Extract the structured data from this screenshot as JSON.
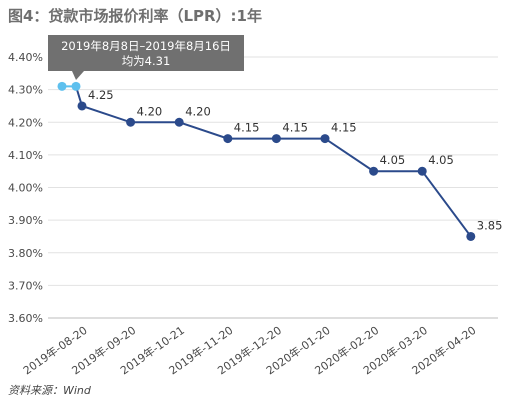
{
  "title": "图4：贷款市场报价利率（LPR）:1年",
  "source": "资料来源：Wind",
  "colors": {
    "line": "#2b4a8b",
    "point": "#2b4a8b",
    "highlight": "#5ec0ee",
    "tooltip_bg": "#707070",
    "grid": "#e2e2e2"
  },
  "chart_data": {
    "type": "line",
    "title": "图4：贷款市场报价利率（LPR）:1年",
    "xlabel": "",
    "ylabel": "",
    "ylim": [
      3.6,
      4.4
    ],
    "yticks": [
      "4.40%",
      "4.30%",
      "4.20%",
      "4.10%",
      "4.00%",
      "3.90%",
      "3.80%",
      "3.70%",
      "3.60%"
    ],
    "grid": "horizontal",
    "highlight": {
      "x": [
        "2019年8月8日",
        "2019年8月16日"
      ],
      "values": [
        4.31,
        4.31
      ],
      "tooltip_line1": "2019年8月8日–2019年8月16日",
      "tooltip_line2": "均为4.31"
    },
    "series": [
      {
        "x": [
          "2019年-08-20",
          "2019年-09-20",
          "2019年-10-21",
          "2019年-11-20",
          "2019年-12-20",
          "2020年-01-20",
          "2020年-02-20",
          "2020年-03-20",
          "2020年-04-20"
        ],
        "values": [
          4.25,
          4.2,
          4.2,
          4.15,
          4.15,
          4.15,
          4.05,
          4.05,
          3.85
        ],
        "labels": [
          "4.25",
          "4.20",
          "4.20",
          "4.15",
          "4.15",
          "4.15",
          "4.05",
          "4.05",
          "3.85"
        ]
      }
    ]
  }
}
